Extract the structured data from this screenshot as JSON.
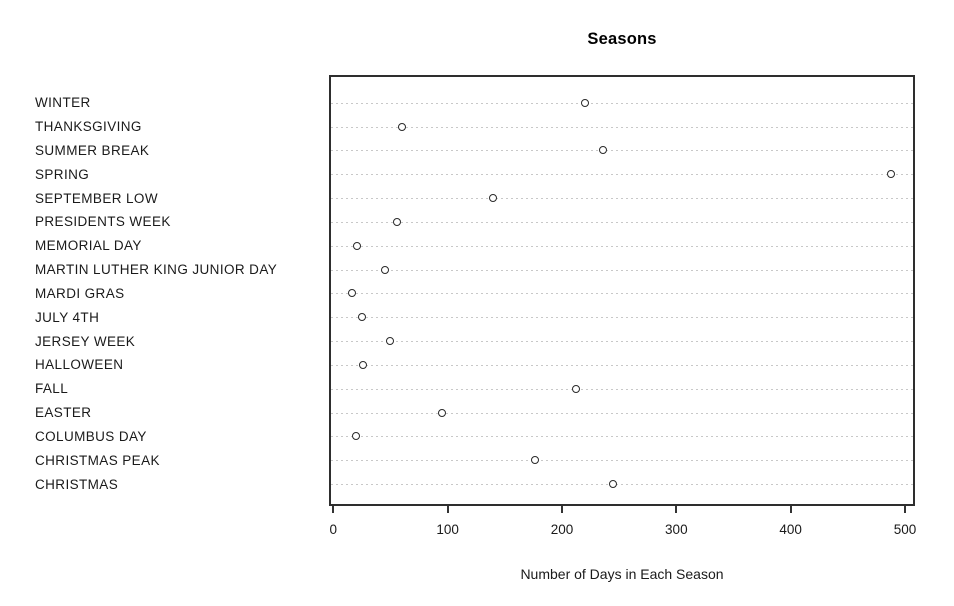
{
  "figure": {
    "background": "#ffffff"
  },
  "chart_data": {
    "type": "scatter",
    "variant": "dot-plot",
    "title": "Seasons",
    "xlabel": "Number of Days in Each Season",
    "ylabel": "",
    "categories": [
      "WINTER",
      "THANKSGIVING",
      "SUMMER BREAK",
      "SPRING",
      "SEPTEMBER LOW",
      "PRESIDENTS WEEK",
      "MEMORIAL DAY",
      "MARTIN LUTHER KING JUNIOR DAY",
      "MARDI GRAS",
      "JULY 4TH",
      "JERSEY WEEK",
      "HALLOWEEN",
      "FALL",
      "EASTER",
      "COLUMBUS DAY",
      "CHRISTMAS PEAK",
      "CHRISTMAS"
    ],
    "values": [
      220,
      60,
      236,
      488,
      140,
      56,
      21,
      45,
      16,
      25,
      50,
      26,
      212,
      95,
      20,
      176,
      245
    ],
    "xlim": [
      0,
      500
    ],
    "x_ticks": [
      0,
      100,
      200,
      300,
      400,
      500
    ],
    "grid": "horizontal-dotted-per-category",
    "legend": "none",
    "marker": "open-circle",
    "colors": {
      "point_stroke": "#2a2a2a",
      "point_fill": "#ffffff",
      "gridline": "#c8c8c8",
      "frame": "#2e2e2e",
      "text": "#1a1a1a"
    }
  }
}
